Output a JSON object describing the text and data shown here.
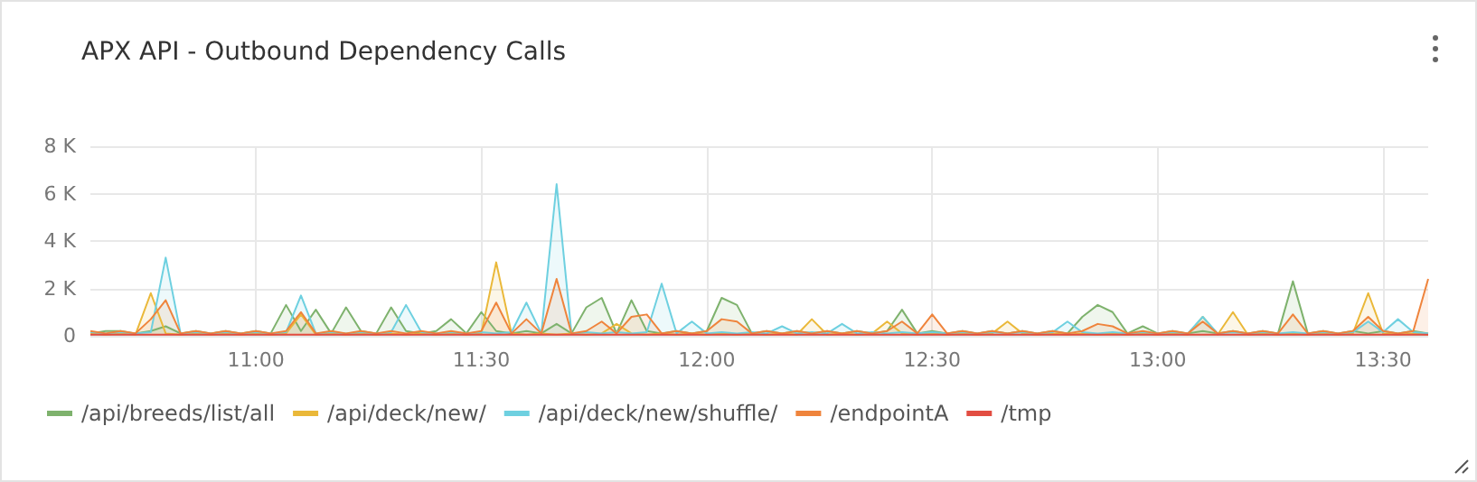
{
  "chart_data": {
    "type": "area",
    "title": "APX API - Outbound Dependency Calls",
    "x": [
      10.633,
      10.667,
      10.7,
      10.733,
      10.767,
      10.8,
      10.833,
      10.867,
      10.9,
      10.933,
      10.967,
      11,
      11.033,
      11.067,
      11.1,
      11.133,
      11.167,
      11.2,
      11.233,
      11.267,
      11.3,
      11.333,
      11.367,
      11.4,
      11.433,
      11.467,
      11.5,
      11.533,
      11.567,
      11.6,
      11.633,
      11.667,
      11.7,
      11.733,
      11.767,
      11.8,
      11.833,
      11.867,
      11.9,
      11.933,
      11.967,
      12,
      12.033,
      12.067,
      12.1,
      12.133,
      12.167,
      12.2,
      12.233,
      12.267,
      12.3,
      12.333,
      12.367,
      12.4,
      12.433,
      12.467,
      12.5,
      12.533,
      12.567,
      12.6,
      12.633,
      12.667,
      12.7,
      12.733,
      12.767,
      12.8,
      12.833,
      12.867,
      12.9,
      12.933,
      12.967,
      13,
      13.033,
      13.067,
      13.1,
      13.133,
      13.167,
      13.2,
      13.233,
      13.267,
      13.3,
      13.333,
      13.367,
      13.4,
      13.433,
      13.467,
      13.5,
      13.533,
      13.567,
      13.6
    ],
    "series": [
      {
        "name": "/api/breeds/list/all",
        "color": "#7eb26d",
        "values": [
          100,
          200,
          200,
          100,
          200,
          400,
          100,
          200,
          100,
          200,
          100,
          200,
          100,
          1300,
          200,
          1100,
          100,
          1200,
          200,
          100,
          1200,
          200,
          100,
          200,
          700,
          100,
          1000,
          200,
          100,
          200,
          100,
          500,
          100,
          1200,
          1600,
          100,
          1500,
          200,
          100,
          200,
          100,
          200,
          1600,
          1300,
          100,
          200,
          100,
          200,
          100,
          200,
          100,
          200,
          100,
          200,
          1100,
          100,
          200,
          100,
          200,
          100,
          200,
          100,
          200,
          100,
          200,
          100,
          800,
          1300,
          1000,
          100,
          400,
          100,
          200,
          100,
          200,
          100,
          200,
          100,
          200,
          100,
          2300,
          100,
          200,
          100,
          200,
          100,
          200,
          100,
          200,
          100
        ]
      },
      {
        "name": "/api/deck/new/",
        "color": "#eab839",
        "values": [
          100,
          50,
          100,
          50,
          1800,
          100,
          50,
          100,
          50,
          100,
          50,
          100,
          50,
          100,
          900,
          50,
          100,
          50,
          100,
          50,
          100,
          50,
          100,
          50,
          100,
          50,
          100,
          3100,
          100,
          50,
          100,
          50,
          100,
          50,
          100,
          500,
          100,
          50,
          100,
          50,
          100,
          50,
          100,
          50,
          100,
          50,
          100,
          50,
          700,
          50,
          100,
          50,
          100,
          600,
          100,
          50,
          100,
          50,
          100,
          50,
          100,
          600,
          100,
          50,
          100,
          50,
          100,
          50,
          100,
          50,
          100,
          50,
          100,
          50,
          800,
          50,
          1000,
          50,
          100,
          50,
          100,
          50,
          100,
          50,
          100,
          1800,
          100,
          50,
          100,
          50
        ]
      },
      {
        "name": "/api/deck/new/shuffle/",
        "color": "#6ed0e0",
        "values": [
          150,
          100,
          150,
          100,
          150,
          3300,
          100,
          150,
          100,
          150,
          100,
          150,
          100,
          150,
          1700,
          100,
          150,
          100,
          150,
          100,
          150,
          1300,
          150,
          100,
          150,
          100,
          150,
          100,
          150,
          1400,
          100,
          6400,
          100,
          150,
          100,
          150,
          100,
          150,
          2200,
          100,
          600,
          100,
          150,
          100,
          150,
          100,
          400,
          100,
          150,
          100,
          500,
          100,
          150,
          100,
          150,
          100,
          150,
          100,
          150,
          100,
          150,
          100,
          150,
          100,
          150,
          600,
          150,
          100,
          150,
          100,
          150,
          100,
          150,
          100,
          800,
          100,
          150,
          100,
          150,
          100,
          150,
          100,
          150,
          100,
          150,
          600,
          150,
          700,
          150,
          100
        ]
      },
      {
        "name": "/endpointA",
        "color": "#ef843c",
        "values": [
          200,
          100,
          200,
          100,
          700,
          1500,
          100,
          200,
          100,
          200,
          100,
          200,
          100,
          200,
          1000,
          100,
          200,
          100,
          200,
          100,
          200,
          100,
          200,
          100,
          200,
          100,
          200,
          1400,
          100,
          700,
          100,
          2400,
          100,
          200,
          600,
          100,
          800,
          900,
          100,
          200,
          100,
          200,
          700,
          600,
          100,
          200,
          100,
          200,
          100,
          200,
          100,
          200,
          100,
          200,
          600,
          100,
          900,
          100,
          200,
          100,
          200,
          100,
          200,
          100,
          200,
          100,
          200,
          500,
          400,
          100,
          200,
          100,
          200,
          100,
          600,
          100,
          200,
          100,
          200,
          100,
          900,
          100,
          200,
          100,
          200,
          800,
          200,
          100,
          200,
          2400
        ]
      },
      {
        "name": "/tmp",
        "color": "#e24d42",
        "values": [
          50,
          50,
          50,
          50,
          50,
          50,
          50,
          50,
          50,
          50,
          50,
          50,
          50,
          50,
          50,
          50,
          50,
          50,
          50,
          50,
          50,
          50,
          50,
          50,
          50,
          50,
          50,
          50,
          50,
          50,
          50,
          50,
          50,
          50,
          50,
          50,
          50,
          50,
          50,
          50,
          50,
          50,
          50,
          50,
          50,
          50,
          50,
          50,
          50,
          50,
          50,
          50,
          50,
          50,
          50,
          50,
          50,
          50,
          50,
          50,
          50,
          50,
          50,
          50,
          50,
          50,
          50,
          50,
          50,
          50,
          50,
          50,
          50,
          50,
          50,
          50,
          50,
          50,
          50,
          50,
          50,
          50,
          50,
          50,
          50,
          50,
          50,
          50,
          50,
          50
        ]
      }
    ],
    "xlim": [
      10.633,
      13.6
    ],
    "xticks": [
      {
        "value": 11,
        "label": "11:00"
      },
      {
        "value": 11.5,
        "label": "11:30"
      },
      {
        "value": 12,
        "label": "12:00"
      },
      {
        "value": 12.5,
        "label": "12:30"
      },
      {
        "value": 13,
        "label": "13:00"
      },
      {
        "value": 13.5,
        "label": "13:30"
      }
    ],
    "ylim": [
      0,
      8000
    ],
    "yticks": [
      0,
      {
        "value": 2000,
        "label": "2 K"
      },
      {
        "value": 4000,
        "label": "4 K"
      },
      {
        "value": 6000,
        "label": "6 K"
      },
      {
        "value": 8000,
        "label": "8 K"
      }
    ],
    "grid": true,
    "legend": "bottom left"
  }
}
